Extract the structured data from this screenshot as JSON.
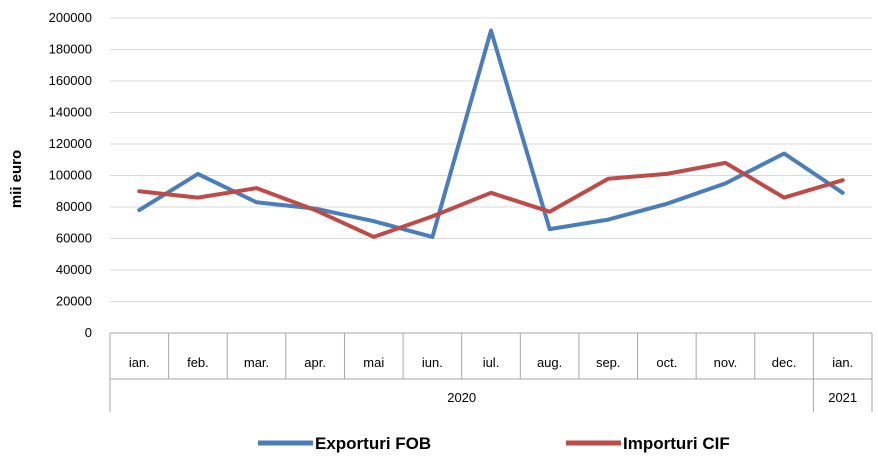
{
  "chart_data": {
    "type": "line",
    "ylabel": "mii euro",
    "xlabel": "",
    "title": "",
    "ylim": [
      0,
      200000
    ],
    "yticks": [
      "0",
      "20000",
      "40000",
      "60000",
      "80000",
      "100000",
      "120000",
      "140000",
      "160000",
      "180000",
      "200000"
    ],
    "categories": [
      "ian.",
      "feb.",
      "mar.",
      "apr.",
      "mai",
      "iun.",
      "iul.",
      "aug.",
      "sep.",
      "oct.",
      "nov.",
      "dec.",
      "ian."
    ],
    "year_groups": [
      {
        "label": "2020",
        "count": 12
      },
      {
        "label": "2021",
        "count": 1
      }
    ],
    "grid": true,
    "legend_position": "bottom",
    "series": [
      {
        "name": "Exporturi FOB",
        "color": "#4a7ebb",
        "values": [
          78000,
          101000,
          83000,
          79000,
          71000,
          61000,
          192000,
          66000,
          72000,
          82000,
          95000,
          114000,
          89000
        ]
      },
      {
        "name": "Importuri CIF",
        "color": "#be4b48",
        "values": [
          90000,
          86000,
          92000,
          78000,
          61000,
          74000,
          89000,
          77000,
          98000,
          101000,
          108000,
          86000,
          97000
        ]
      }
    ]
  }
}
